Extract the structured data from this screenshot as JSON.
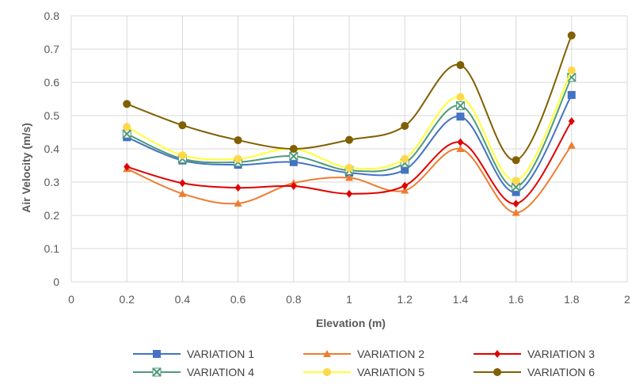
{
  "chart_data": {
    "type": "line",
    "xlabel": "Elevation (m)",
    "ylabel": "Air Velocity (m/s)",
    "xlim": [
      0,
      2
    ],
    "ylim": [
      0,
      0.8
    ],
    "x_ticks": [
      "0",
      "0.2",
      "0.4",
      "0.6",
      "0.8",
      "1",
      "1.2",
      "1.4",
      "1.6",
      "1.8",
      "2"
    ],
    "y_ticks": [
      "0",
      "0.1",
      "0.2",
      "0.3",
      "0.4",
      "0.5",
      "0.6",
      "0.7",
      "0.8"
    ],
    "grid": "vertical and horizontal",
    "smooth_lines": true,
    "legend_position": "bottom",
    "x": [
      0.2,
      0.4,
      0.6,
      0.8,
      1.0,
      1.2,
      1.4,
      1.6,
      1.8
    ],
    "series": [
      {
        "name": "VARIATION 1",
        "color": "#4472C4",
        "marker": "square",
        "values": [
          0.435,
          0.365,
          0.352,
          0.36,
          0.328,
          0.337,
          0.497,
          0.27,
          0.562
        ]
      },
      {
        "name": "VARIATION 2",
        "color": "#ED7D31",
        "marker": "triangle",
        "values": [
          0.34,
          0.265,
          0.236,
          0.297,
          0.313,
          0.275,
          0.4,
          0.208,
          0.41
        ]
      },
      {
        "name": "VARIATION 3",
        "color": "#E00000",
        "marker": "diamond",
        "values": [
          0.346,
          0.297,
          0.283,
          0.288,
          0.265,
          0.289,
          0.42,
          0.235,
          0.483
        ]
      },
      {
        "name": "VARIATION 4",
        "color": "#4E9A7A",
        "marker": "x-box",
        "values": [
          0.445,
          0.37,
          0.36,
          0.378,
          0.335,
          0.357,
          0.53,
          0.285,
          0.615
        ]
      },
      {
        "name": "VARIATION 5",
        "color": "#FFD84A",
        "line_color": "#FFFF33",
        "marker": "circle",
        "values": [
          0.466,
          0.381,
          0.37,
          0.4,
          0.343,
          0.37,
          0.556,
          0.304,
          0.636
        ]
      },
      {
        "name": "VARIATION 6",
        "color": "#806000",
        "marker": "circle",
        "values": [
          0.535,
          0.471,
          0.426,
          0.4,
          0.427,
          0.469,
          0.652,
          0.366,
          0.741
        ]
      }
    ]
  }
}
